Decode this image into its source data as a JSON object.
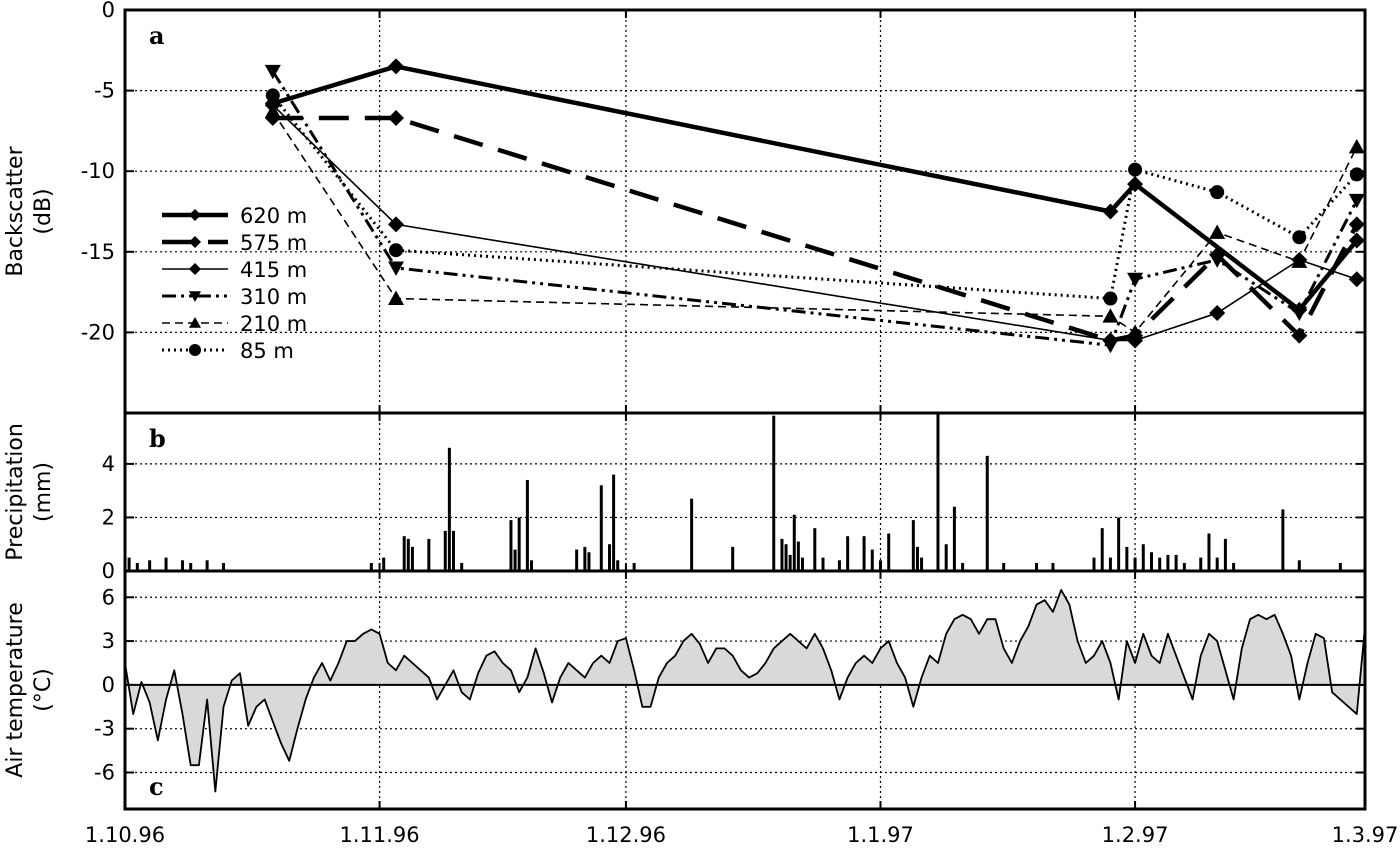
{
  "chart_data": [
    {
      "id": "a",
      "type": "line",
      "panel_label": "a",
      "ylabel": [
        "Backscatter",
        "(dB)"
      ],
      "x_ticks": [
        "1.10.96",
        "1.11.96",
        "1.12.96",
        "1.1.97",
        "1.2.97",
        "1.3.97"
      ],
      "x_tick_days": [
        0,
        31,
        61,
        92,
        123,
        151
      ],
      "xlim": [
        0,
        151
      ],
      "ylim": [
        -25,
        0
      ],
      "y_ticks": [
        0,
        -5,
        -10,
        -15,
        -20
      ],
      "y_tick_labels": [
        "0",
        "-5",
        "-10",
        "-15",
        "-20"
      ],
      "grid": true,
      "legend_position": "left",
      "series": [
        {
          "name": "620 m",
          "style": "thick-solid",
          "marker": "diamond",
          "x": [
            18,
            33,
            120,
            123,
            143,
            150
          ],
          "y": [
            -5.8,
            -3.5,
            -12.5,
            -10.8,
            -18.6,
            -14.3
          ]
        },
        {
          "name": "575 m",
          "style": "thick-dash",
          "marker": "diamond",
          "x": [
            18,
            33,
            120,
            123,
            133,
            143,
            150
          ],
          "y": [
            -6.7,
            -6.7,
            -20.5,
            -20.2,
            -15.2,
            -20.2,
            -13.3
          ]
        },
        {
          "name": "415 m",
          "style": "thin-solid",
          "marker": "diamond",
          "x": [
            18,
            33,
            120,
            123,
            133,
            143,
            150
          ],
          "y": [
            -5.9,
            -13.3,
            -20.5,
            -20.5,
            -18.8,
            -15.5,
            -16.7
          ]
        },
        {
          "name": "310 m",
          "style": "dash-dot",
          "marker": "triangle-down",
          "x": [
            18,
            33,
            120,
            123,
            133,
            143,
            150
          ],
          "y": [
            -3.8,
            -16.0,
            -20.8,
            -16.7,
            -15.5,
            -18.8,
            -11.8
          ]
        },
        {
          "name": "210 m",
          "style": "thin-dash",
          "marker": "triangle-up",
          "x": [
            18,
            33,
            120,
            123,
            133,
            143,
            150
          ],
          "y": [
            -6.3,
            -17.9,
            -19.0,
            -20.0,
            -13.8,
            -15.6,
            -8.5
          ]
        },
        {
          "name": "85 m",
          "style": "dotted",
          "marker": "circle",
          "x": [
            18,
            33,
            120,
            123,
            133,
            143,
            150
          ],
          "y": [
            -5.3,
            -14.9,
            -17.9,
            -9.9,
            -11.3,
            -14.1,
            -10.2
          ]
        }
      ]
    },
    {
      "id": "b",
      "type": "bar",
      "panel_label": "b",
      "ylabel": [
        "Precipitation",
        "(mm)"
      ],
      "ylim": [
        0,
        5.9
      ],
      "y_ticks": [
        0,
        2,
        4
      ],
      "y_tick_labels": [
        "0",
        "2",
        "4"
      ],
      "grid": true,
      "x": [
        0.5,
        1.5,
        3,
        5,
        7,
        8,
        10,
        12,
        30,
        31.5,
        34,
        34.5,
        35,
        37,
        39,
        39.5,
        40,
        41,
        47,
        47.5,
        48,
        49,
        49.5,
        55,
        56,
        56.5,
        58,
        59,
        59.5,
        60,
        62,
        69,
        74,
        79,
        80,
        80.5,
        81,
        81.5,
        82,
        82.5,
        84,
        85,
        87,
        88,
        90,
        91,
        92,
        93,
        96,
        96.5,
        97,
        99,
        100,
        101,
        102,
        105,
        107,
        111,
        113,
        118,
        119,
        120,
        121,
        122,
        123,
        124,
        125,
        126,
        127,
        128,
        129,
        131,
        132,
        133,
        134,
        135,
        141,
        143,
        148
      ],
      "values": [
        0.5,
        0.3,
        0.4,
        0.5,
        0.4,
        0.3,
        0.4,
        0.3,
        0.3,
        0.5,
        1.3,
        1.2,
        0.9,
        1.2,
        1.5,
        4.6,
        1.5,
        0.3,
        1.9,
        0.8,
        2.0,
        3.4,
        0.4,
        0.8,
        0.9,
        0.7,
        3.2,
        1.0,
        3.6,
        0.4,
        0.3,
        2.7,
        0.9,
        5.8,
        1.2,
        1.0,
        0.6,
        2.1,
        1.1,
        0.5,
        1.6,
        0.5,
        0.4,
        1.3,
        1.3,
        0.8,
        0.4,
        1.4,
        1.9,
        0.9,
        0.5,
        5.9,
        1.0,
        2.4,
        0.3,
        4.3,
        0.3,
        0.3,
        0.3,
        0.5,
        1.6,
        0.5,
        2.0,
        0.9,
        0.5,
        1.0,
        0.7,
        0.5,
        0.6,
        0.6,
        0.3,
        0.5,
        1.4,
        0.5,
        1.2,
        0.3,
        2.3,
        0.4,
        0.3
      ]
    },
    {
      "id": "c",
      "type": "area",
      "panel_label": "c",
      "ylabel": [
        "Air temperature",
        "(°C)"
      ],
      "ylim": [
        -8.5,
        7.8
      ],
      "y_ticks": [
        6,
        3,
        0,
        -3,
        -6
      ],
      "y_tick_labels": [
        "6",
        "3",
        "0",
        "-3",
        "-6"
      ],
      "grid": true,
      "x": [
        0,
        1,
        2,
        3,
        4,
        5,
        6,
        7,
        8,
        9,
        10,
        11,
        12,
        13,
        14,
        15,
        16,
        17,
        18,
        19,
        20,
        21,
        22,
        23,
        24,
        25,
        26,
        27,
        28,
        29,
        30,
        31,
        32,
        33,
        34,
        35,
        36,
        37,
        38,
        39,
        40,
        41,
        42,
        43,
        44,
        45,
        46,
        47,
        48,
        49,
        50,
        51,
        52,
        53,
        54,
        55,
        56,
        57,
        58,
        59,
        60,
        61,
        62,
        63,
        64,
        65,
        66,
        67,
        68,
        69,
        70,
        71,
        72,
        73,
        74,
        75,
        76,
        77,
        78,
        79,
        80,
        81,
        82,
        83,
        84,
        85,
        86,
        87,
        88,
        89,
        90,
        91,
        92,
        93,
        94,
        95,
        96,
        97,
        98,
        99,
        100,
        101,
        102,
        103,
        104,
        105,
        106,
        107,
        108,
        109,
        110,
        111,
        112,
        113,
        114,
        115,
        116,
        117,
        118,
        119,
        120,
        121,
        122,
        123,
        124,
        125,
        126,
        127,
        128,
        129,
        130,
        131,
        132,
        133,
        134,
        135,
        136,
        137,
        138,
        139,
        140,
        141,
        142,
        143,
        144,
        145,
        146,
        147,
        148,
        149,
        150,
        151
      ],
      "values": [
        1.5,
        -2.0,
        0.2,
        -1.2,
        -3.8,
        -1.0,
        1.0,
        -2.0,
        -5.5,
        -5.5,
        -1.0,
        -7.3,
        -1.5,
        0.3,
        0.8,
        -2.8,
        -1.5,
        -1.0,
        -2.5,
        -4.0,
        -5.2,
        -3.0,
        -1.0,
        0.5,
        1.5,
        0.3,
        1.5,
        3.0,
        3.0,
        3.5,
        3.8,
        3.5,
        1.5,
        1.0,
        2.0,
        1.5,
        1.0,
        0.5,
        -1.0,
        0.0,
        1.0,
        -0.5,
        -1.0,
        0.8,
        2.0,
        2.3,
        1.5,
        1.0,
        -0.5,
        0.5,
        2.5,
        0.8,
        -1.2,
        0.5,
        1.5,
        1.0,
        0.5,
        1.5,
        2.0,
        1.5,
        3.0,
        3.2,
        1.0,
        -1.5,
        -1.5,
        0.5,
        1.5,
        2.0,
        3.0,
        3.5,
        2.8,
        1.5,
        2.5,
        2.5,
        2.0,
        1.0,
        0.5,
        0.8,
        1.5,
        2.5,
        3.0,
        3.5,
        3.0,
        2.5,
        3.5,
        2.5,
        1.0,
        -1.0,
        0.5,
        1.5,
        2.0,
        1.5,
        2.5,
        3.0,
        1.5,
        0.5,
        -1.5,
        0.5,
        2.0,
        1.5,
        3.5,
        4.5,
        4.8,
        4.5,
        3.5,
        4.5,
        4.5,
        2.5,
        1.5,
        3.0,
        4.0,
        5.5,
        5.8,
        5.0,
        6.5,
        5.5,
        3.0,
        1.5,
        2.0,
        3.0,
        1.5,
        -1.0,
        3.0,
        1.5,
        3.5,
        2.0,
        1.5,
        3.5,
        2.0,
        0.5,
        -1.0,
        2.0,
        3.5,
        3.0,
        1.0,
        -1.0,
        2.5,
        4.5,
        4.8,
        4.5,
        4.8,
        3.5,
        2.0,
        -1.0,
        1.5,
        3.5,
        3.2,
        -0.5,
        -1.0,
        -1.5,
        -2.0,
        4.0
      ]
    }
  ]
}
